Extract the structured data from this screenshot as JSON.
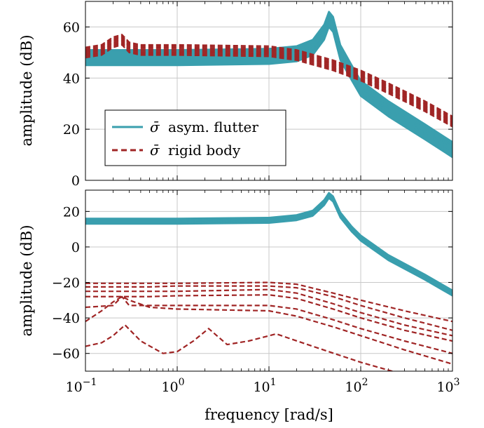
{
  "chart_data": {
    "type": "line",
    "xlabel": "frequency [rad/s]",
    "x_scale": "log",
    "xlim": [
      0.1,
      1000
    ],
    "x_ticks": [
      {
        "value": 0.1,
        "base": "10",
        "exp": "−1"
      },
      {
        "value": 1,
        "base": "10",
        "exp": "0"
      },
      {
        "value": 10,
        "base": "10",
        "exp": "1"
      },
      {
        "value": 100,
        "base": "10",
        "exp": "2"
      },
      {
        "value": 1000,
        "base": "10",
        "exp": "3"
      }
    ],
    "grid": true,
    "colors": {
      "flutter": "#3a9fae",
      "rigid": "#a02525"
    },
    "legend": {
      "placement": "lower-left of top panel",
      "entries": [
        {
          "symbol": "σ̄",
          "text": "asym. flutter",
          "style": "solid",
          "color": "#3a9fae"
        },
        {
          "symbol": "σ̄",
          "text": "rigid body",
          "style": "dashed",
          "color": "#a02525"
        }
      ]
    },
    "panels": [
      {
        "ylabel": "amplitude (dB)",
        "ylim": [
          0,
          70
        ],
        "y_ticks": [
          0,
          20,
          40,
          60
        ],
        "series": [
          {
            "style": "solid",
            "color": "#3a9fae",
            "band_count": 16,
            "band_spread": 6,
            "x": [
              0.1,
              1,
              10,
              20,
              30,
              40,
              45,
              50,
              60,
              80,
              100,
              200,
              500,
              1000
            ],
            "y": [
              48,
              48,
              48.5,
              49.5,
              52,
              58,
              63,
              61,
              50,
              42,
              36,
              28,
              19,
              12
            ]
          },
          {
            "style": "dashed",
            "color": "#a02525",
            "band_count": 8,
            "band_spread": 4,
            "x": [
              0.1,
              0.15,
              0.2,
              0.25,
              0.3,
              0.4,
              1,
              10,
              20,
              50,
              100,
              200,
              500,
              1000
            ],
            "y": [
              50,
              51,
              54,
              55,
              52,
              51,
              51,
              50.5,
              49,
              45,
              41,
              36,
              29,
              23
            ]
          }
        ]
      },
      {
        "ylabel": "amplitude (dB)",
        "ylim": [
          -70,
          32
        ],
        "y_ticks": [
          -60,
          -40,
          -20,
          0,
          20
        ],
        "series": [
          {
            "style": "solid",
            "color": "#3a9fae",
            "band_count": 18,
            "band_spread": 3,
            "x": [
              0.1,
              1,
              10,
              20,
              30,
              40,
              45,
              50,
              60,
              80,
              100,
              200,
              500,
              1000
            ],
            "y": [
              14.5,
              14.5,
              15,
              16.5,
              19,
              25,
              29,
              27,
              18,
              10,
              5,
              -6,
              -17,
              -26
            ]
          },
          {
            "style": "dashed",
            "color": "#a02525",
            "band_count": 1,
            "band_spread": 0,
            "x": [
              0.1,
              0.5,
              1,
              10,
              20,
              50,
              100,
              300,
              1000
            ],
            "y": [
              -20.5,
              -20.5,
              -20.5,
              -20,
              -21,
              -26,
              -30,
              -36,
              -42
            ]
          },
          {
            "style": "dashed",
            "color": "#a02525",
            "band_count": 1,
            "band_spread": 0,
            "x": [
              0.1,
              0.5,
              1,
              10,
              20,
              50,
              100,
              300,
              1000
            ],
            "y": [
              -22.5,
              -22.5,
              -22,
              -22,
              -23,
              -28,
              -33,
              -40,
              -47
            ]
          },
          {
            "style": "dashed",
            "color": "#a02525",
            "band_count": 1,
            "band_spread": 0,
            "x": [
              0.1,
              0.5,
              1,
              10,
              20,
              50,
              100,
              300,
              1000
            ],
            "y": [
              -25,
              -25,
              -25,
              -24,
              -26,
              -32,
              -37,
              -44,
              -50
            ]
          },
          {
            "style": "dashed",
            "color": "#a02525",
            "band_count": 1,
            "band_spread": 0,
            "x": [
              0.1,
              0.5,
              1,
              10,
              20,
              50,
              100,
              300,
              1000
            ],
            "y": [
              -28,
              -28,
              -27.5,
              -27,
              -29,
              -35,
              -40,
              -47,
              -53
            ]
          },
          {
            "style": "dashed",
            "color": "#a02525",
            "band_count": 1,
            "band_spread": 0,
            "x": [
              0.1,
              0.2,
              0.25,
              0.3,
              0.5,
              1,
              10,
              20,
              50,
              100,
              300,
              1000
            ],
            "y": [
              -34,
              -33,
              -28,
              -33,
              -33,
              -33,
              -33,
              -35,
              -41,
              -46,
              -53,
              -60
            ]
          },
          {
            "style": "dashed",
            "color": "#a02525",
            "band_count": 1,
            "band_spread": 0,
            "x": [
              0.1,
              0.15,
              0.2,
              0.25,
              0.3,
              0.5,
              1,
              10,
              20,
              50,
              100,
              300,
              1000
            ],
            "y": [
              -42,
              -36,
              -31,
              -28,
              -30,
              -34,
              -35,
              -36,
              -39,
              -45,
              -50,
              -58,
              -66
            ]
          },
          {
            "style": "dashed",
            "color": "#a02525",
            "band_count": 1,
            "band_spread": 0,
            "x": [
              0.1,
              0.15,
              0.2,
              0.27,
              0.4,
              0.7,
              1,
              1.5,
              2.2,
              3.5,
              6,
              12,
              30,
              100,
              300
            ],
            "y": [
              -56,
              -54,
              -50,
              -44,
              -53,
              -60,
              -59,
              -53,
              -46,
              -55,
              -53,
              -49,
              -56,
              -65,
              -72
            ]
          }
        ]
      }
    ]
  }
}
